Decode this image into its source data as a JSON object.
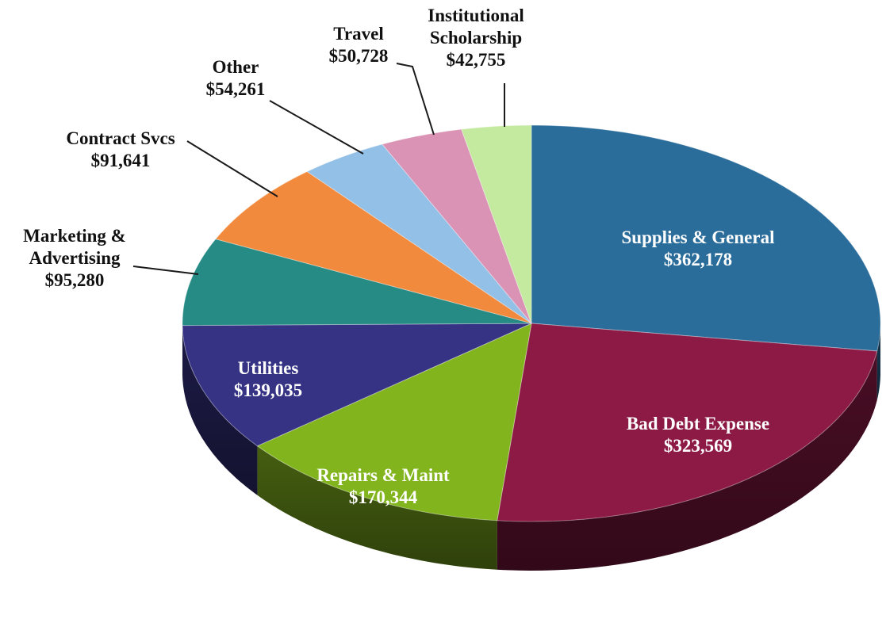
{
  "chart_data": {
    "type": "pie",
    "title": "",
    "style": "3d-tilted",
    "start": "12 o'clock, clockwise",
    "slices": [
      {
        "name": "Supplies & General",
        "value": 362178,
        "value_label": "$362,178",
        "color": "#2a6c9a",
        "label_placement": "inside"
      },
      {
        "name": "Bad Debt Expense",
        "value": 323569,
        "value_label": "$323,569",
        "color": "#8c1a45",
        "label_placement": "inside"
      },
      {
        "name": "Repairs & Maint",
        "value": 170344,
        "value_label": "$170,344",
        "color": "#82b41e",
        "label_placement": "inside"
      },
      {
        "name": "Utilities",
        "value": 139035,
        "value_label": "$139,035",
        "color": "#363384",
        "label_placement": "inside"
      },
      {
        "name": "Marketing & Advertising",
        "value": 95280,
        "value_label": "$95,280",
        "color": "#268b84",
        "label_placement": "outside"
      },
      {
        "name": "Contract Svcs",
        "value": 91641,
        "value_label": "$91,641",
        "color": "#f28a3e",
        "label_placement": "outside"
      },
      {
        "name": "Other",
        "value": 54261,
        "value_label": "$54,261",
        "color": "#93c0e6",
        "label_placement": "outside"
      },
      {
        "name": "Travel",
        "value": 50728,
        "value_label": "$50,728",
        "color": "#da93b4",
        "label_placement": "outside"
      },
      {
        "name": "Institutional Scholarship",
        "value": 42755,
        "value_label": "$42,755",
        "color": "#c4eaa0",
        "label_placement": "outside"
      }
    ]
  }
}
